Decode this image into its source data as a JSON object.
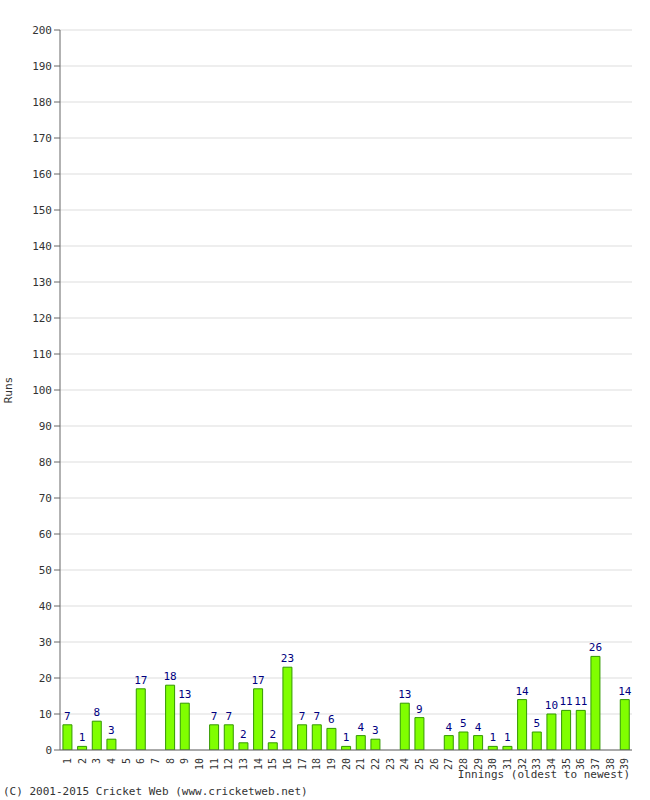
{
  "chart_data": {
    "type": "bar",
    "x_label": "Innings (oldest to newest)",
    "y_label": "Runs",
    "annotations": [
      "(C) 2001-2015 Cricket Web (www.cricketweb.net)"
    ],
    "categories": [
      "1",
      "2",
      "3",
      "4",
      "5",
      "6",
      "7",
      "8",
      "9",
      "10",
      "11",
      "12",
      "13",
      "14",
      "15",
      "16",
      "17",
      "18",
      "19",
      "20",
      "21",
      "22",
      "23",
      "24",
      "25",
      "26",
      "27",
      "28",
      "29",
      "30",
      "31",
      "32",
      "33",
      "34",
      "35",
      "36",
      "37",
      "38",
      "39"
    ],
    "values": [
      7,
      1,
      8,
      3,
      0,
      17,
      0,
      18,
      13,
      0,
      7,
      7,
      2,
      17,
      2,
      23,
      7,
      7,
      6,
      1,
      4,
      3,
      0,
      13,
      9,
      0,
      4,
      5,
      4,
      1,
      1,
      14,
      5,
      10,
      11,
      11,
      26,
      0,
      14
    ],
    "color": "#80ff00",
    "ylim": [
      0,
      200
    ],
    "yticks": [
      0,
      10,
      20,
      30,
      40,
      50,
      60,
      70,
      80,
      90,
      100,
      110,
      120,
      130,
      140,
      150,
      160,
      170,
      180,
      190,
      200
    ],
    "grid": true,
    "data_labels": true
  }
}
